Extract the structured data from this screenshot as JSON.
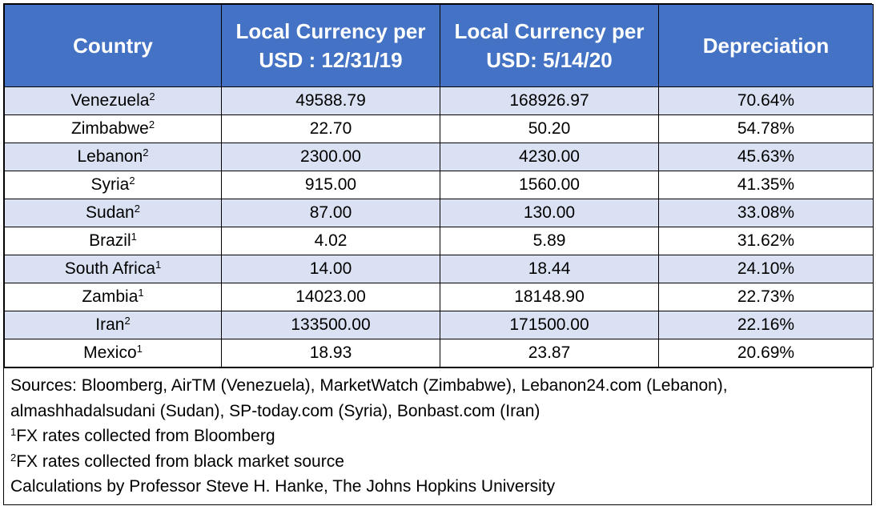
{
  "table": {
    "headers": [
      "Country",
      "Local Currency per USD : 12/31/19",
      "Local Currency per USD: 5/14/20",
      "Depreciation"
    ],
    "rows": [
      {
        "country": "Venezuela",
        "sup": "2",
        "usd_2019": "49588.79",
        "usd_2020": "168926.97",
        "depreciation": "70.64%"
      },
      {
        "country": "Zimbabwe",
        "sup": "2",
        "usd_2019": "22.70",
        "usd_2020": "50.20",
        "depreciation": "54.78%"
      },
      {
        "country": "Lebanon",
        "sup": "2",
        "usd_2019": "2300.00",
        "usd_2020": "4230.00",
        "depreciation": "45.63%"
      },
      {
        "country": "Syria",
        "sup": "2",
        "usd_2019": "915.00",
        "usd_2020": "1560.00",
        "depreciation": "41.35%"
      },
      {
        "country": "Sudan",
        "sup": "2",
        "usd_2019": "87.00",
        "usd_2020": "130.00",
        "depreciation": "33.08%"
      },
      {
        "country": "Brazil",
        "sup": "1",
        "usd_2019": "4.02",
        "usd_2020": "5.89",
        "depreciation": "31.62%"
      },
      {
        "country": "South Africa",
        "sup": "1",
        "usd_2019": "14.00",
        "usd_2020": "18.44",
        "depreciation": "24.10%"
      },
      {
        "country": "Zambia",
        "sup": "1",
        "usd_2019": "14023.00",
        "usd_2020": "18148.90",
        "depreciation": "22.73%"
      },
      {
        "country": "Iran",
        "sup": "2",
        "usd_2019": "133500.00",
        "usd_2020": "171500.00",
        "depreciation": "22.16%"
      },
      {
        "country": "Mexico",
        "sup": "1",
        "usd_2019": "18.93",
        "usd_2020": "23.87",
        "depreciation": "20.69%"
      }
    ]
  },
  "notes": {
    "sources_line1": "Sources: Bloomberg, AirTM (Venezuela), MarketWatch (Zimbabwe), Lebanon24.com (Lebanon),",
    "sources_line2": "almashhadalsudani (Sudan), SP-today.com (Syria), Bonbast.com (Iran)",
    "footnote1_marker": "1",
    "footnote1_text": "FX rates collected from Bloomberg",
    "footnote2_marker": "2",
    "footnote2_text": "FX rates collected from black market source",
    "credit": "Calculations by Professor Steve H. Hanke, The Johns Hopkins University"
  },
  "colors": {
    "header_bg": "#4472c4",
    "header_text": "#ffffff",
    "band": "#d9e1f2"
  }
}
